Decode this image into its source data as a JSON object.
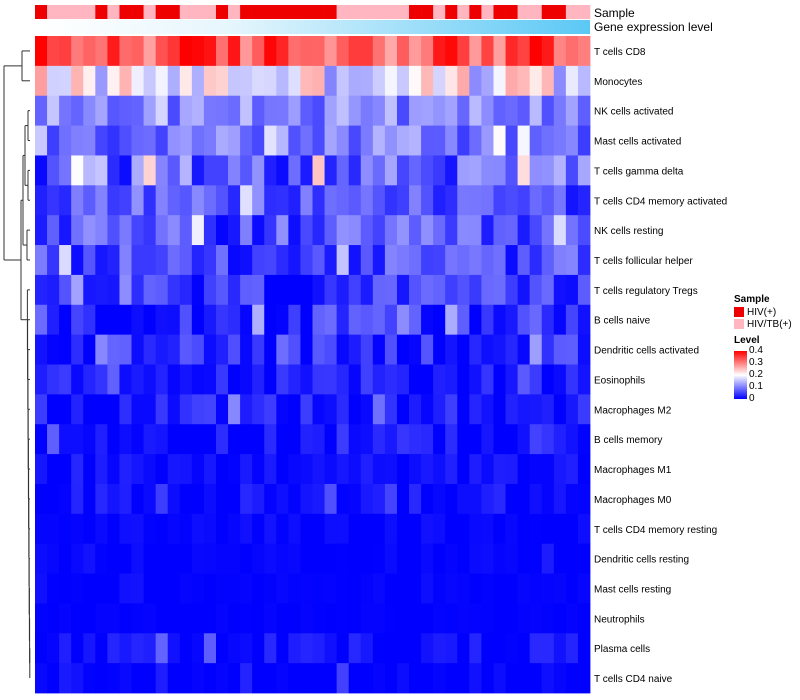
{
  "chart_data": {
    "type": "heatmap",
    "annotation_tracks": [
      "Sample",
      "Gene expression level"
    ],
    "rows": [
      "T cells CD8",
      "Monocytes",
      "NK cells activated",
      "Mast cells activated",
      "T cells gamma delta",
      "T cells CD4 memory activated",
      "NK cells resting",
      "T cells follicular helper",
      "T cells regulatory  Tregs",
      "B cells naive",
      "Dendritic cells activated",
      "Eosinophils",
      "Macrophages M2",
      "B cells memory",
      "Macrophages M1",
      "Macrophages M0",
      "T cells CD4 memory resting",
      "Dendritic cells resting",
      "Mast cells resting",
      "Neutrophils",
      "Plasma cells",
      "T cells CD4 naive"
    ],
    "n_samples": 46,
    "sample_groups": [
      "HIV(+)",
      "HIV/TB(+)",
      "HIV/TB(+)",
      "HIV/TB(+)",
      "HIV/TB(+)",
      "HIV(+)",
      "HIV/TB(+)",
      "HIV(+)",
      "HIV(+)",
      "HIV/TB(+)",
      "HIV(+)",
      "HIV(+)",
      "HIV/TB(+)",
      "HIV/TB(+)",
      "HIV/TB(+)",
      "HIV(+)",
      "HIV/TB(+)",
      "HIV(+)",
      "HIV(+)",
      "HIV(+)",
      "HIV(+)",
      "HIV(+)",
      "HIV(+)",
      "HIV(+)",
      "HIV(+)",
      "HIV/TB(+)",
      "HIV/TB(+)",
      "HIV/TB(+)",
      "HIV/TB(+)",
      "HIV/TB(+)",
      "HIV/TB(+)",
      "HIV(+)",
      "HIV(+)",
      "HIV/TB(+)",
      "HIV(+)",
      "HIV/TB(+)",
      "HIV(+)",
      "HIV/TB(+)",
      "HIV(+)",
      "HIV(+)",
      "HIV/TB(+)",
      "HIV/TB(+)",
      "HIV(+)",
      "HIV(+)",
      "HIV/TB(+)",
      "HIV/TB(+)"
    ],
    "row_dendrogram": "left",
    "legend": {
      "sample_title": "Sample",
      "sample_items": [
        {
          "label": "HIV(+)",
          "color": "#ee0000"
        },
        {
          "label": "HIV/TB(+)",
          "color": "#ffb6c1"
        }
      ],
      "level_title": "Level",
      "level_ticks": [
        "0.4",
        "0.3",
        "0.2",
        "0.1",
        "0"
      ],
      "range": [
        0,
        0.4
      ]
    },
    "colors": {
      "low": "#0000ff",
      "mid": "#ffffff",
      "high": "#ff0000",
      "expression_track": "#5bc8f5"
    },
    "row_profiles": [
      {
        "base": 0.33,
        "spread": 0.07
      },
      {
        "base": 0.18,
        "spread": 0.09
      },
      {
        "base": 0.1,
        "spread": 0.05
      },
      {
        "base": 0.09,
        "spread": 0.06
      },
      {
        "base": 0.07,
        "spread": 0.07
      },
      {
        "base": 0.06,
        "spread": 0.05
      },
      {
        "base": 0.05,
        "spread": 0.06
      },
      {
        "base": 0.05,
        "spread": 0.05
      },
      {
        "base": 0.03,
        "spread": 0.05
      },
      {
        "base": 0.03,
        "spread": 0.05
      },
      {
        "base": 0.03,
        "spread": 0.045
      },
      {
        "base": 0.015,
        "spread": 0.03
      },
      {
        "base": 0.015,
        "spread": 0.035
      },
      {
        "base": 0.01,
        "spread": 0.03
      },
      {
        "base": 0.005,
        "spread": 0.02
      },
      {
        "base": 0.005,
        "spread": 0.025
      },
      {
        "base": 0.0,
        "spread": 0.012
      },
      {
        "base": 0.0,
        "spread": 0.01
      },
      {
        "base": 0.0,
        "spread": 0.006
      },
      {
        "base": 0.0,
        "spread": 0.004
      },
      {
        "base": 0.0,
        "spread": 0.03
      },
      {
        "base": 0.0,
        "spread": 0.02
      }
    ]
  }
}
